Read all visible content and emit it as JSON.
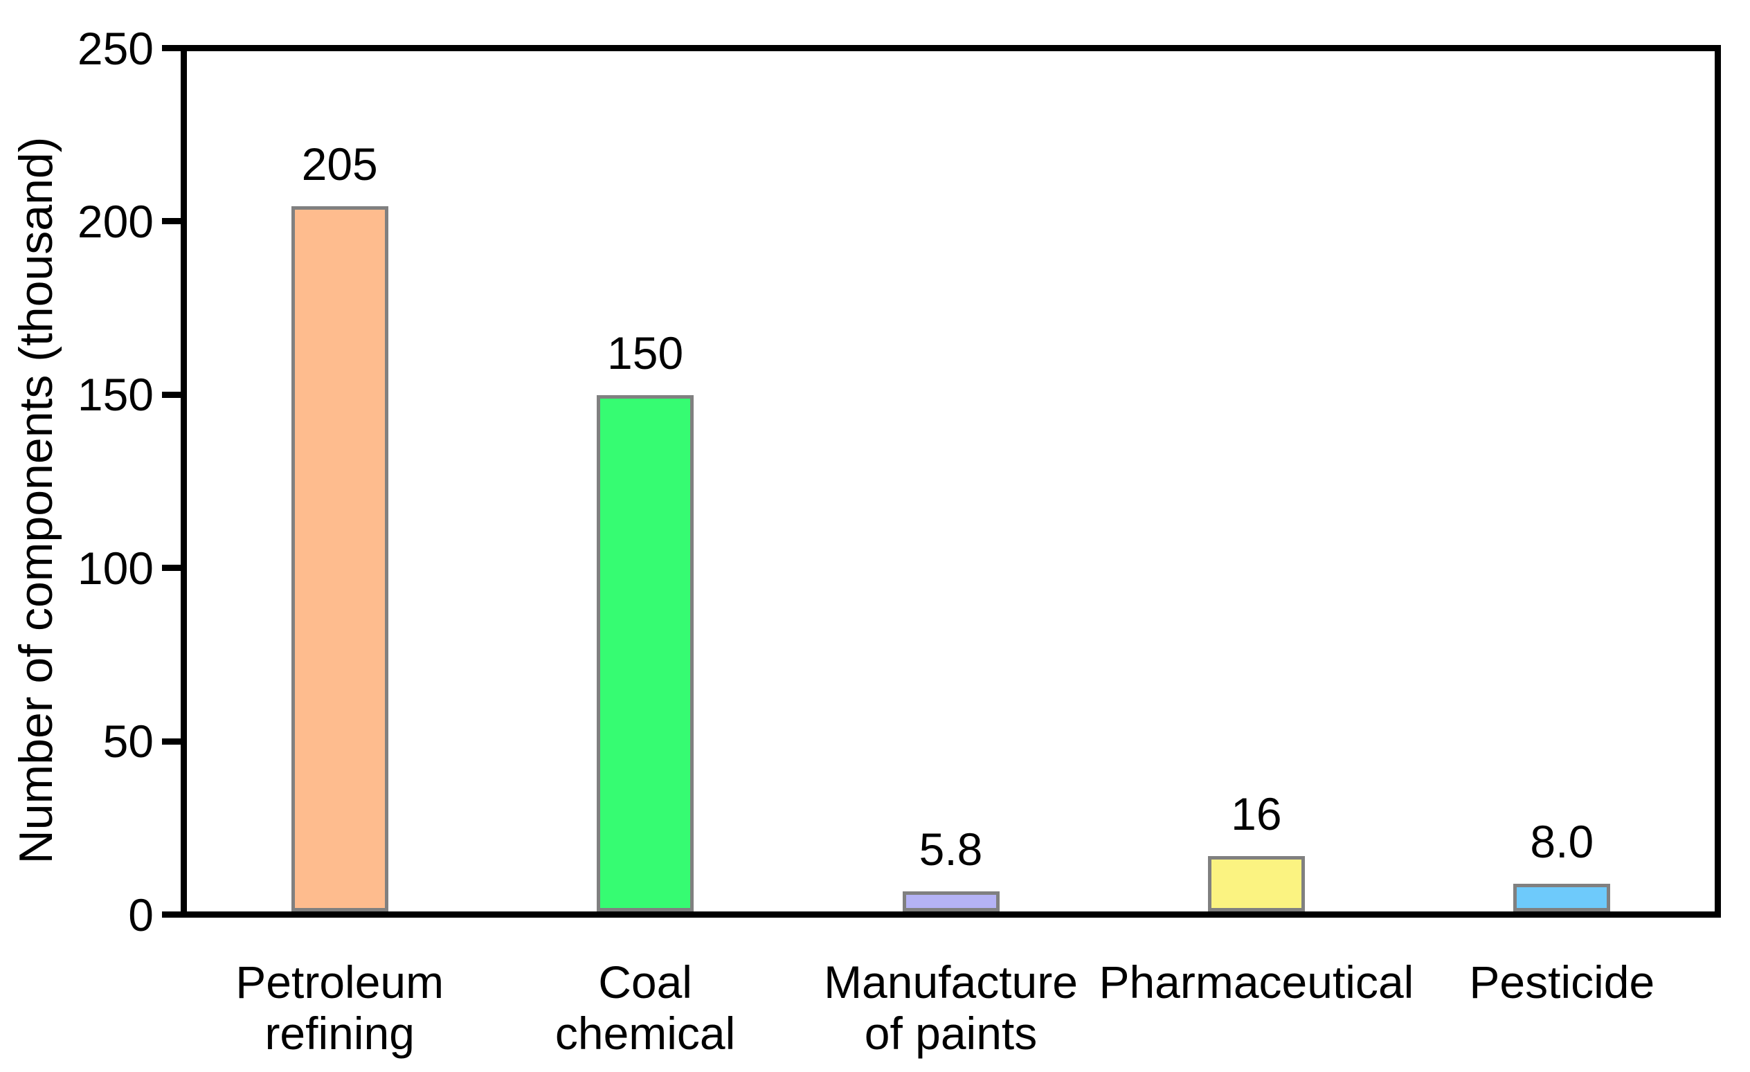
{
  "figure": {
    "background": "#ffffff",
    "axis_color": "#000000",
    "text_color": "#000000"
  },
  "chart_data": {
    "type": "bar",
    "title": "",
    "xlabel": "",
    "ylabel": "Number of components (thousand)",
    "ylim": [
      0,
      250
    ],
    "ytick_values": [
      0,
      50,
      100,
      150,
      200,
      250
    ],
    "ytick_labels": [
      "0",
      "50",
      "100",
      "150",
      "200",
      "250"
    ],
    "grid": false,
    "legend": "none",
    "bar_border_color": "#808080",
    "categories": [
      "Petroleum\nrefining",
      "Coal\nchemical",
      "Manufacture\nof paints",
      "Pharmaceutical",
      "Pesticide"
    ],
    "values": [
      205,
      150,
      5.8,
      16,
      8.0
    ],
    "bars": [
      {
        "category": "Petroleum\nrefining",
        "value": 205,
        "value_label": "205",
        "color": "#FEBC8E"
      },
      {
        "category": "Coal\nchemical",
        "value": 150,
        "value_label": "150",
        "color": "#36FC72"
      },
      {
        "category": "Manufacture\nof paints",
        "value": 5.8,
        "value_label": "5.8",
        "color": "#B5B3F5"
      },
      {
        "category": "Pharmaceutical",
        "value": 16,
        "value_label": "16",
        "color": "#FBF381"
      },
      {
        "category": "Pesticide",
        "value": 8.0,
        "value_label": "8.0",
        "color": "#6ECAFB"
      }
    ]
  }
}
